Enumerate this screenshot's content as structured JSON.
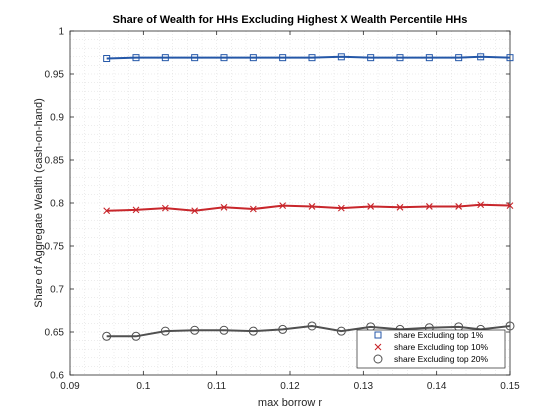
{
  "chart_data": {
    "type": "line",
    "title": "Share of Wealth for HHs Excluding Highest X Wealth Percentile HHs",
    "xlabel": "max borrow r",
    "ylabel": "Share of Aggregate Wealth (cash-on-hand)",
    "xlim": [
      0.09,
      0.15
    ],
    "ylim": [
      0.6,
      1.0
    ],
    "xticks": [
      "0.09",
      "0.1",
      "0.11",
      "0.12",
      "0.13",
      "0.14",
      "0.15"
    ],
    "yticks": [
      "0.6",
      "0.65",
      "0.7",
      "0.75",
      "0.8",
      "0.85",
      "0.9",
      "0.95",
      "1"
    ],
    "grid": "minor dotted",
    "legend_position": "bottom-right",
    "x": [
      0.095,
      0.099,
      0.103,
      0.107,
      0.111,
      0.115,
      0.119,
      0.123,
      0.127,
      0.131,
      0.135,
      0.139,
      0.143,
      0.146,
      0.15
    ],
    "series": [
      {
        "name": "share Excluding top 1%",
        "color": "#2457a8",
        "marker": "square",
        "values": [
          0.968,
          0.969,
          0.969,
          0.969,
          0.969,
          0.969,
          0.969,
          0.969,
          0.97,
          0.969,
          0.969,
          0.969,
          0.969,
          0.97,
          0.969
        ]
      },
      {
        "name": "share Excluding top 10%",
        "color": "#c8262b",
        "marker": "x",
        "values": [
          0.791,
          0.792,
          0.794,
          0.791,
          0.795,
          0.793,
          0.797,
          0.796,
          0.794,
          0.796,
          0.795,
          0.796,
          0.796,
          0.798,
          0.797
        ]
      },
      {
        "name": "share Excluding top 20%",
        "color": "#505050",
        "marker": "circle",
        "values": [
          0.645,
          0.645,
          0.651,
          0.652,
          0.652,
          0.651,
          0.653,
          0.657,
          0.651,
          0.656,
          0.653,
          0.655,
          0.656,
          0.653,
          0.657
        ]
      }
    ]
  }
}
